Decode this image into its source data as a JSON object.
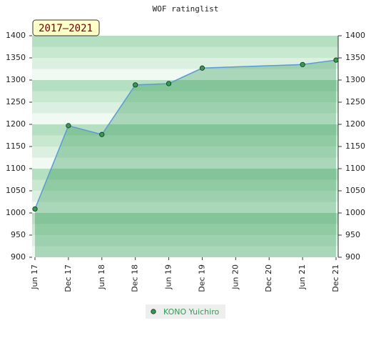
{
  "chart_data": {
    "type": "line",
    "title": "WOF ratinglist",
    "period_label": "2017–2021",
    "x": [
      0,
      6,
      12,
      18,
      24,
      30,
      48,
      54
    ],
    "series": [
      {
        "name": "KONO Yuichiro",
        "color": "#2e9e4f",
        "values": [
          1009,
          1197,
          1177,
          1289,
          1292,
          1327,
          1335,
          1345
        ]
      }
    ],
    "xlim": [
      0,
      54
    ],
    "xticks": [
      {
        "value": 0,
        "label": "Jun 17"
      },
      {
        "value": 6,
        "label": "Dec 17"
      },
      {
        "value": 12,
        "label": "Jun 18"
      },
      {
        "value": 18,
        "label": "Dec 18"
      },
      {
        "value": 24,
        "label": "Jun 19"
      },
      {
        "value": 30,
        "label": "Dec 19"
      },
      {
        "value": 36,
        "label": "Jun 20"
      },
      {
        "value": 42,
        "label": "Dec 20"
      },
      {
        "value": 48,
        "label": "Jun 21"
      },
      {
        "value": 54,
        "label": "Dec 21"
      }
    ],
    "ylim": [
      900,
      1400
    ],
    "yticks": [
      900,
      950,
      1000,
      1050,
      1100,
      1150,
      1200,
      1250,
      1300,
      1350,
      1400
    ]
  }
}
